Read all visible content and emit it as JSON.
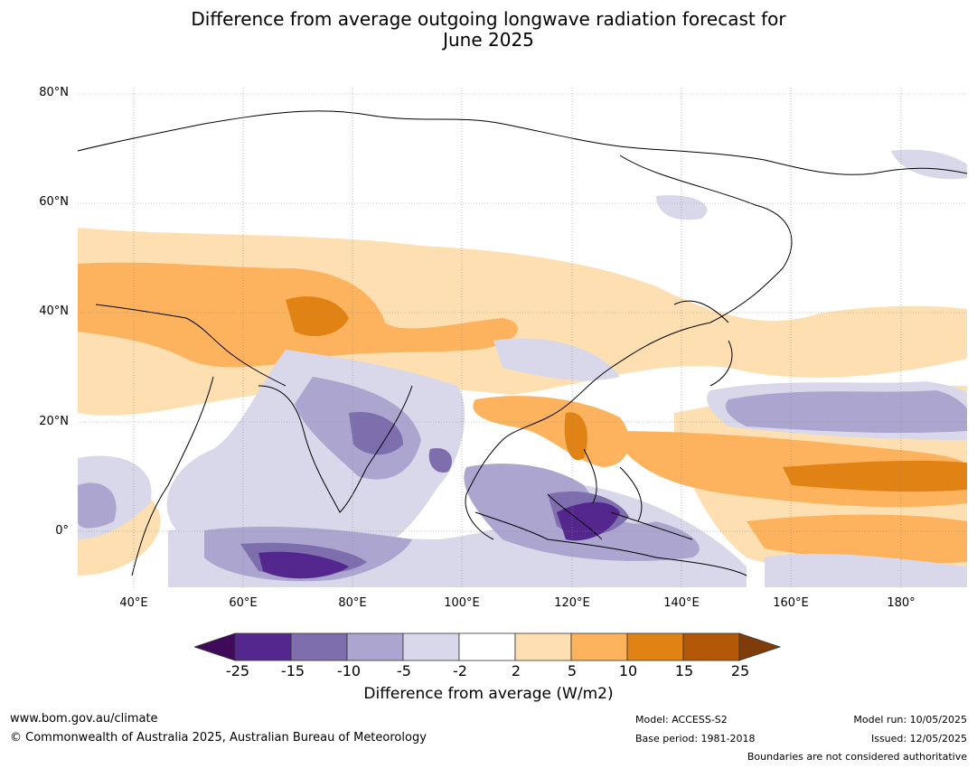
{
  "title": {
    "line1": "Difference from average outgoing longwave radiation forecast for",
    "line2": "June 2025"
  },
  "map": {
    "lat_labels": [
      "80°N",
      "60°N",
      "40°N",
      "20°N",
      "0°"
    ],
    "lon_labels": [
      "40°E",
      "60°E",
      "80°E",
      "100°E",
      "120°E",
      "140°E",
      "160°E",
      "180°"
    ],
    "land_color": "#ffffff",
    "coastline_color": "#000000",
    "boundary_color": "#808080"
  },
  "colorbar": {
    "tick_labels": [
      "-25",
      "-15",
      "-10",
      "-5",
      "-2",
      "2",
      "5",
      "10",
      "15",
      "25"
    ],
    "colors": [
      "#3f0a5a",
      "#54278f",
      "#7f6eae",
      "#aba5cf",
      "#d8d8ea",
      "#ffffff",
      "#fedfb2",
      "#fdb35d",
      "#e08214",
      "#b35806",
      "#7f3b08"
    ],
    "label": "Difference from average (W/m2)"
  },
  "footer": {
    "website": "www.bom.gov.au/climate",
    "copyright": "© Commonwealth of Australia 2025, Australian Bureau of Meteorology",
    "model": "Model: ACCESS-S2",
    "base_period": "Base period: 1981-2018",
    "model_run": "Model run: 10/05/2025",
    "issued": "Issued: 12/05/2025",
    "disclaimer": "Boundaries are not considered authoritative"
  }
}
